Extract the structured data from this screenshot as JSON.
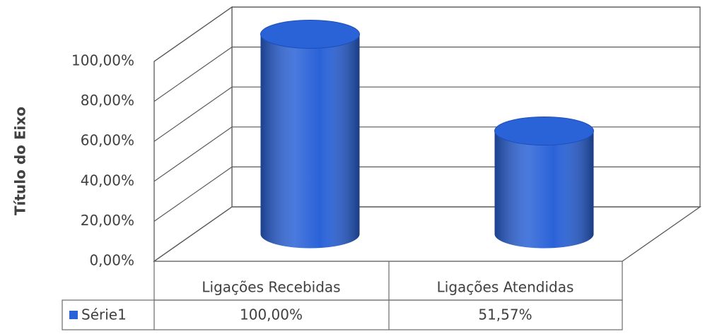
{
  "chart_data": {
    "type": "bar",
    "axis_label": "Título do Eixo",
    "categories": [
      "Ligações Recebidas",
      "Ligações Atendidas"
    ],
    "series": [
      {
        "name": "Série1",
        "color": "#2a62d8",
        "values": [
          100,
          51.57
        ],
        "value_labels": [
          "100,00%",
          "51,57%"
        ]
      }
    ],
    "ylim": [
      0,
      100
    ],
    "yticks": [
      {
        "value": 0,
        "label": "0,00%"
      },
      {
        "value": 20,
        "label": "20,00%"
      },
      {
        "value": 40,
        "label": "40,00%"
      },
      {
        "value": 60,
        "label": "60,00%"
      },
      {
        "value": 80,
        "label": "80,00%"
      },
      {
        "value": 100,
        "label": "100,00%"
      }
    ],
    "grid": true
  }
}
